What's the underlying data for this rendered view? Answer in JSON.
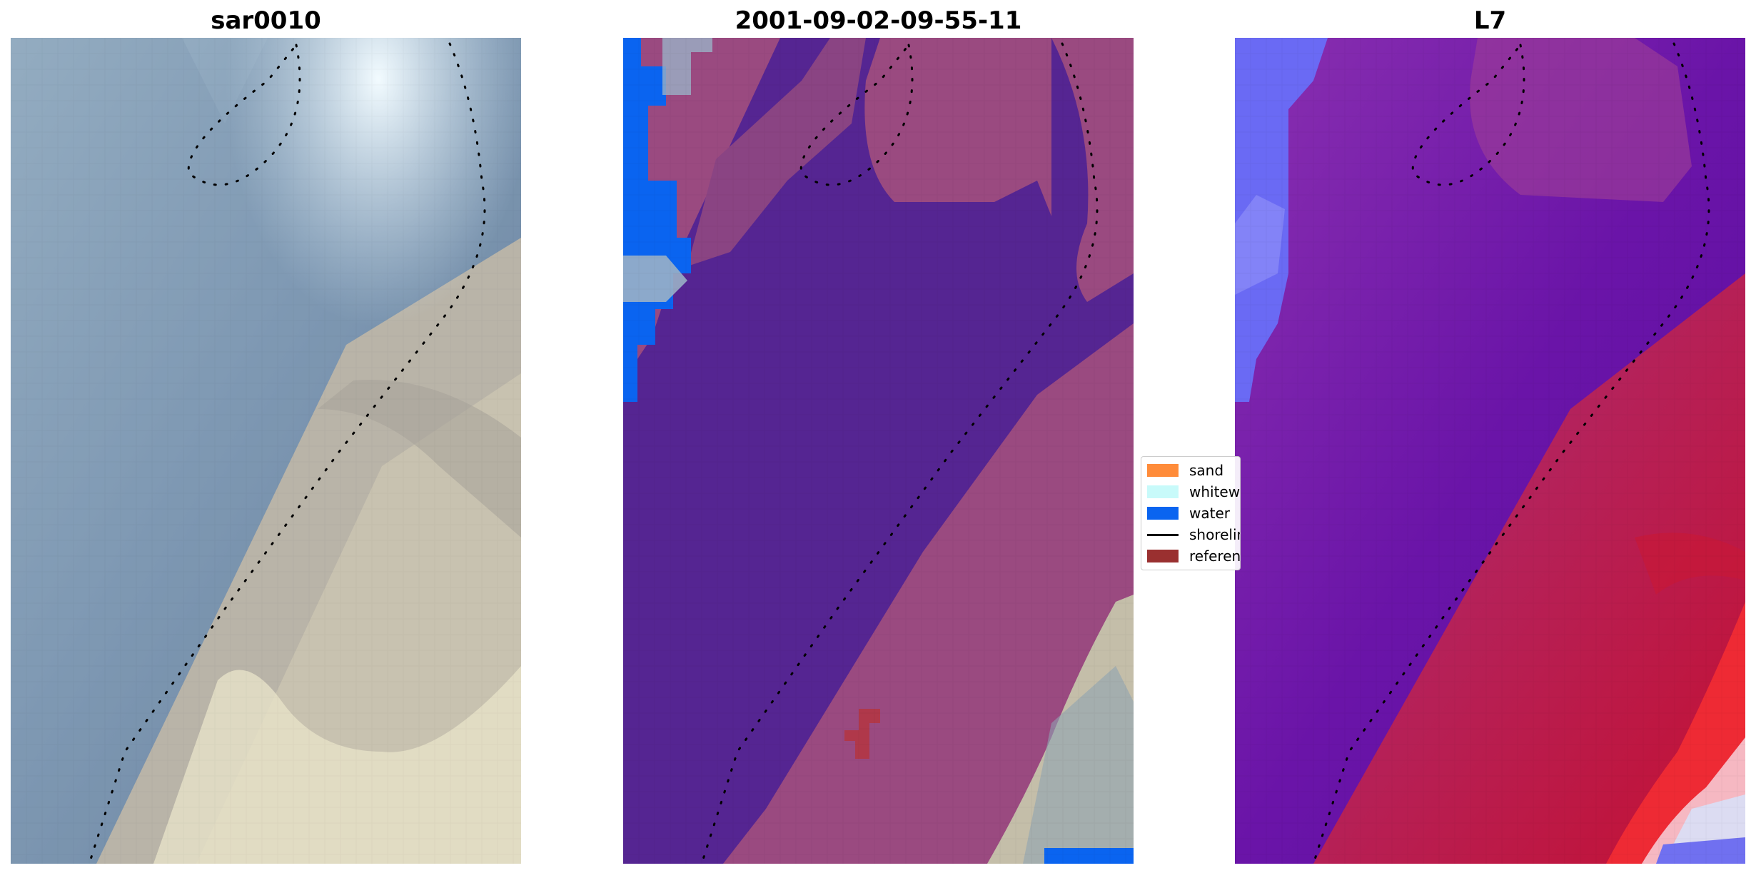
{
  "panels": {
    "rgb": {
      "title": "sar0010"
    },
    "classified": {
      "title": "2001-09-02-09-55-11"
    },
    "index": {
      "title": "L7"
    }
  },
  "legend": {
    "items": [
      {
        "label": "sand",
        "color": "#ff8c3a",
        "kind": "patch"
      },
      {
        "label": "whitewater",
        "color": "#c8fafa",
        "kind": "patch"
      },
      {
        "label": "water",
        "color": "#0a64f0",
        "kind": "patch"
      },
      {
        "label": "shoreline",
        "color": "#000000",
        "kind": "line"
      },
      {
        "label": "reference shoreline buffer",
        "color": "#9a3030",
        "kind": "patch"
      }
    ]
  },
  "colors": {
    "classified_water": "#552592",
    "classified_land": "#9a4a80",
    "rgb_water": "#6b86a6",
    "rgb_land": "#b8b6b0",
    "index_water": "#6a14a8",
    "index_land": "#c0204a"
  }
}
